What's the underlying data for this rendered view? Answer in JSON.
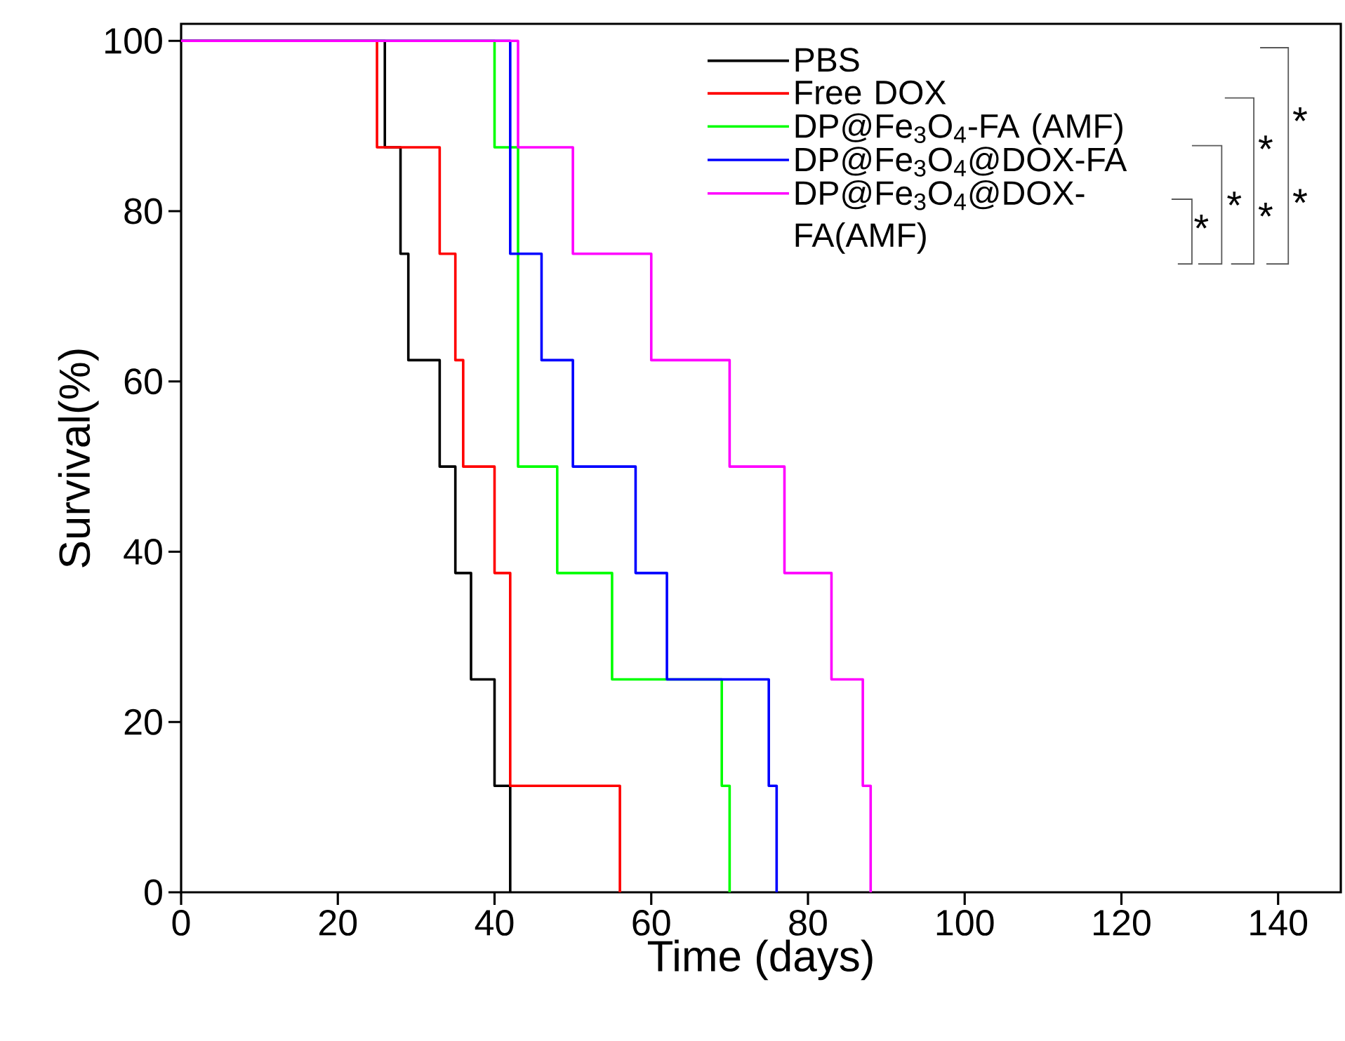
{
  "chart_data": {
    "type": "step",
    "xlabel": "Time (days)",
    "ylabel": "Survival(%)",
    "xlim": [
      0,
      148
    ],
    "ylim": [
      0,
      102
    ],
    "xticks": [
      0,
      20,
      40,
      60,
      80,
      100,
      120,
      140
    ],
    "yticks": [
      0,
      20,
      40,
      60,
      80,
      100
    ],
    "legend": "top right",
    "series": [
      {
        "name": "PBS",
        "color": "#000000",
        "x": [
          0,
          26,
          28,
          29,
          33,
          35,
          37,
          40,
          42
        ],
        "values": [
          100,
          87.5,
          75,
          62.5,
          50,
          37.5,
          25,
          12.5,
          0
        ]
      },
      {
        "name": "Free DOX",
        "color": "#ff0000",
        "x": [
          0,
          25,
          33,
          35,
          36,
          40,
          42,
          56
        ],
        "values": [
          100,
          87.5,
          75,
          62.5,
          50,
          37.5,
          12.5,
          0
        ]
      },
      {
        "name": "DP@Fe$_{3}$O$_{4}$-FA (AMF)",
        "color": "#00ff00",
        "x": [
          0,
          40,
          43,
          48,
          55,
          69,
          70
        ],
        "values": [
          100,
          87.5,
          50,
          37.5,
          25,
          12.5,
          0
        ]
      },
      {
        "name": "DP@Fe$_{3}$O$_{4}$@DOX-FA",
        "color": "#0000ff",
        "x": [
          0,
          42,
          46,
          50,
          58,
          62,
          75,
          76
        ],
        "values": [
          100,
          75,
          62.5,
          50,
          37.5,
          25,
          12.5,
          0
        ]
      },
      {
        "name": "DP@Fe$_{3}$O$_{4}$@DOX-FA(AMF)",
        "color": "#ff00ff",
        "x": [
          0,
          43,
          50,
          60,
          70,
          77,
          83,
          87,
          88
        ],
        "values": [
          100,
          87.5,
          75,
          62.5,
          50,
          37.5,
          25,
          12.5,
          0
        ]
      }
    ],
    "annotations": [
      "*",
      "*",
      "*",
      "*",
      "*",
      "*"
    ]
  }
}
